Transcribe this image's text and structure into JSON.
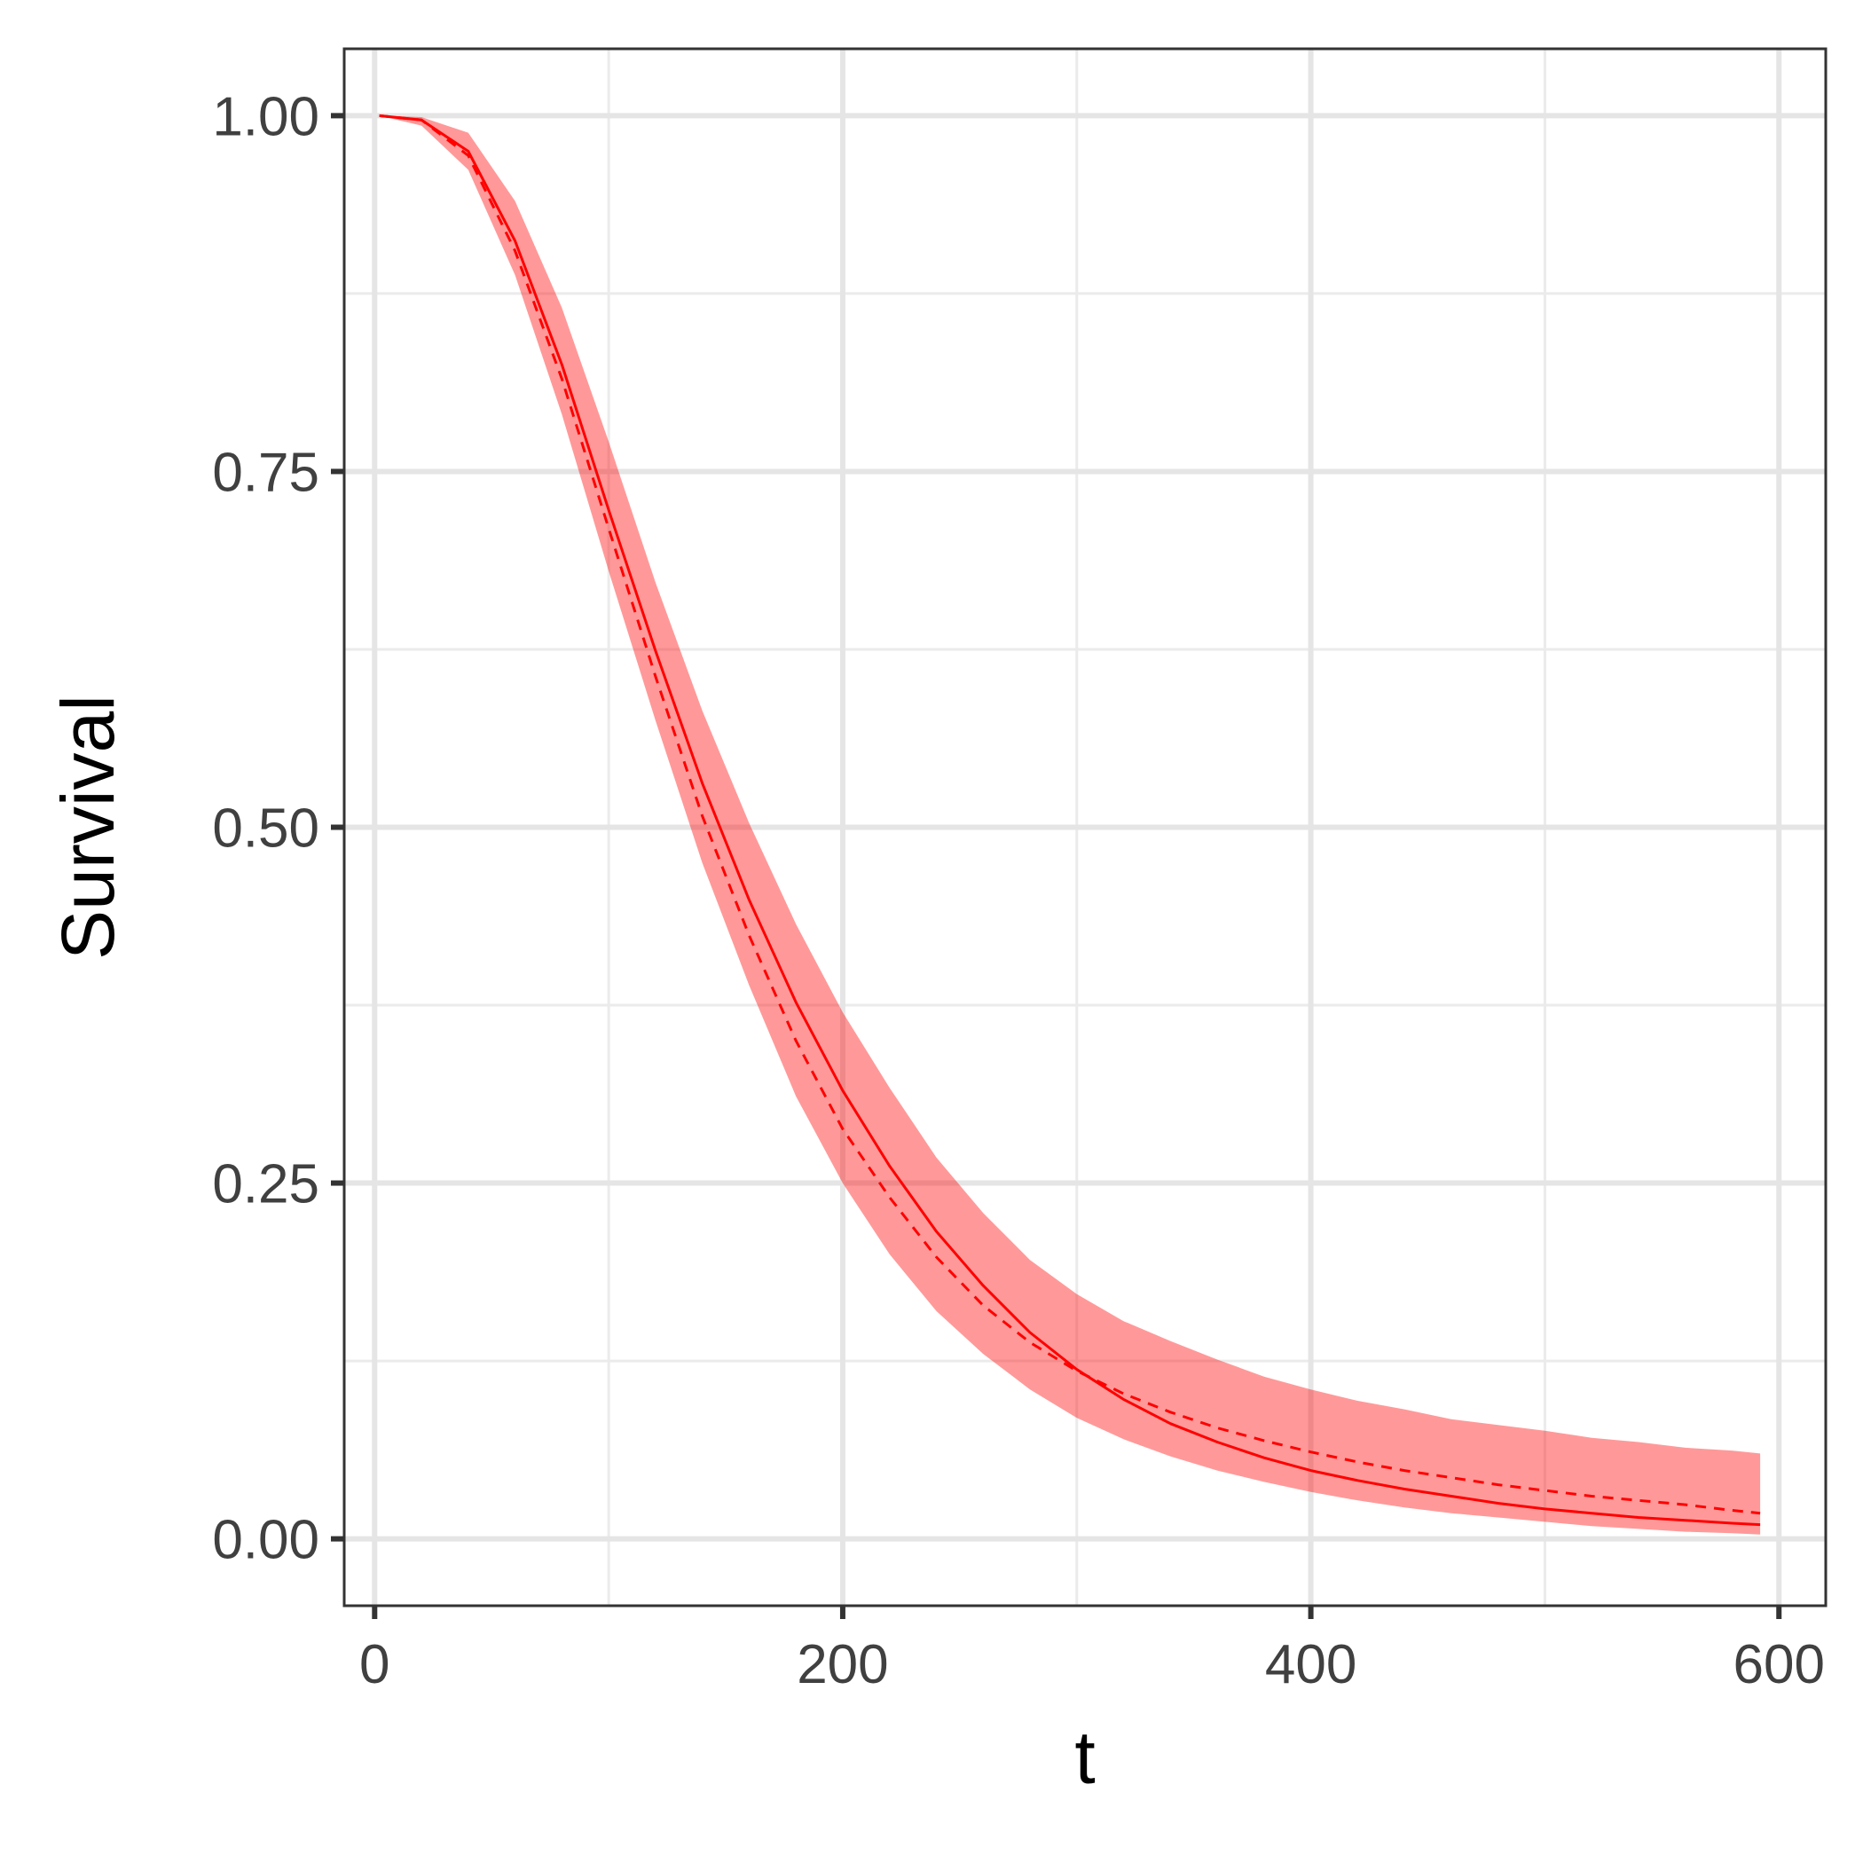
{
  "chart_data": {
    "type": "line",
    "title": "",
    "xlabel": "t",
    "ylabel": "Survival",
    "xlim": [
      -13,
      620
    ],
    "ylim": [
      -0.047,
      1.047
    ],
    "x_ticks": [
      0,
      200,
      400,
      600
    ],
    "x_tick_labels": [
      "0",
      "200",
      "400",
      "600"
    ],
    "y_ticks": [
      0,
      0.25,
      0.5,
      0.75,
      1.0
    ],
    "y_tick_labels": [
      "0.00",
      "0.25",
      "0.50",
      "0.75",
      "1.00"
    ],
    "grid": true,
    "legend": "none",
    "series": [
      {
        "style": "solid",
        "color": "#ff0000",
        "x": [
          2,
          20,
          40,
          60,
          80,
          100,
          120,
          140,
          160,
          180,
          200,
          220,
          240,
          260,
          280,
          300,
          320,
          340,
          360,
          380,
          400,
          420,
          440,
          460,
          480,
          500,
          520,
          540,
          560,
          580,
          592
        ],
        "y": [
          1.0,
          0.997,
          0.975,
          0.912,
          0.825,
          0.723,
          0.624,
          0.531,
          0.449,
          0.377,
          0.315,
          0.262,
          0.216,
          0.178,
          0.145,
          0.119,
          0.098,
          0.081,
          0.068,
          0.057,
          0.048,
          0.041,
          0.035,
          0.03,
          0.025,
          0.021,
          0.018,
          0.015,
          0.013,
          0.011,
          0.01
        ]
      },
      {
        "style": "dashed",
        "color": "#ff0000",
        "x": [
          2,
          20,
          40,
          60,
          80,
          100,
          120,
          140,
          160,
          180,
          200,
          220,
          240,
          260,
          280,
          300,
          320,
          340,
          360,
          380,
          400,
          420,
          440,
          460,
          480,
          500,
          520,
          540,
          560,
          580,
          592
        ],
        "y": [
          1.0,
          0.997,
          0.972,
          0.905,
          0.815,
          0.71,
          0.606,
          0.508,
          0.424,
          0.35,
          0.288,
          0.24,
          0.198,
          0.164,
          0.138,
          0.118,
          0.102,
          0.089,
          0.078,
          0.069,
          0.061,
          0.054,
          0.048,
          0.043,
          0.038,
          0.034,
          0.03,
          0.027,
          0.024,
          0.02,
          0.018
        ]
      }
    ],
    "ribbon": {
      "color": "#ff0000",
      "opacity": 0.4,
      "x": [
        2,
        20,
        40,
        60,
        80,
        100,
        120,
        140,
        160,
        180,
        200,
        220,
        240,
        260,
        280,
        300,
        320,
        340,
        360,
        380,
        400,
        420,
        440,
        460,
        480,
        500,
        520,
        540,
        560,
        580,
        592
      ],
      "lower": [
        1.0,
        0.993,
        0.962,
        0.888,
        0.79,
        0.68,
        0.575,
        0.475,
        0.389,
        0.311,
        0.25,
        0.2,
        0.16,
        0.13,
        0.105,
        0.085,
        0.07,
        0.058,
        0.048,
        0.04,
        0.033,
        0.027,
        0.022,
        0.018,
        0.015,
        0.012,
        0.009,
        0.007,
        0.005,
        0.004,
        0.003
      ],
      "upper": [
        1.0,
        0.999,
        0.988,
        0.94,
        0.865,
        0.771,
        0.672,
        0.582,
        0.503,
        0.432,
        0.37,
        0.317,
        0.268,
        0.229,
        0.196,
        0.172,
        0.153,
        0.139,
        0.126,
        0.114,
        0.105,
        0.097,
        0.091,
        0.084,
        0.08,
        0.076,
        0.071,
        0.068,
        0.064,
        0.062,
        0.06
      ]
    }
  }
}
